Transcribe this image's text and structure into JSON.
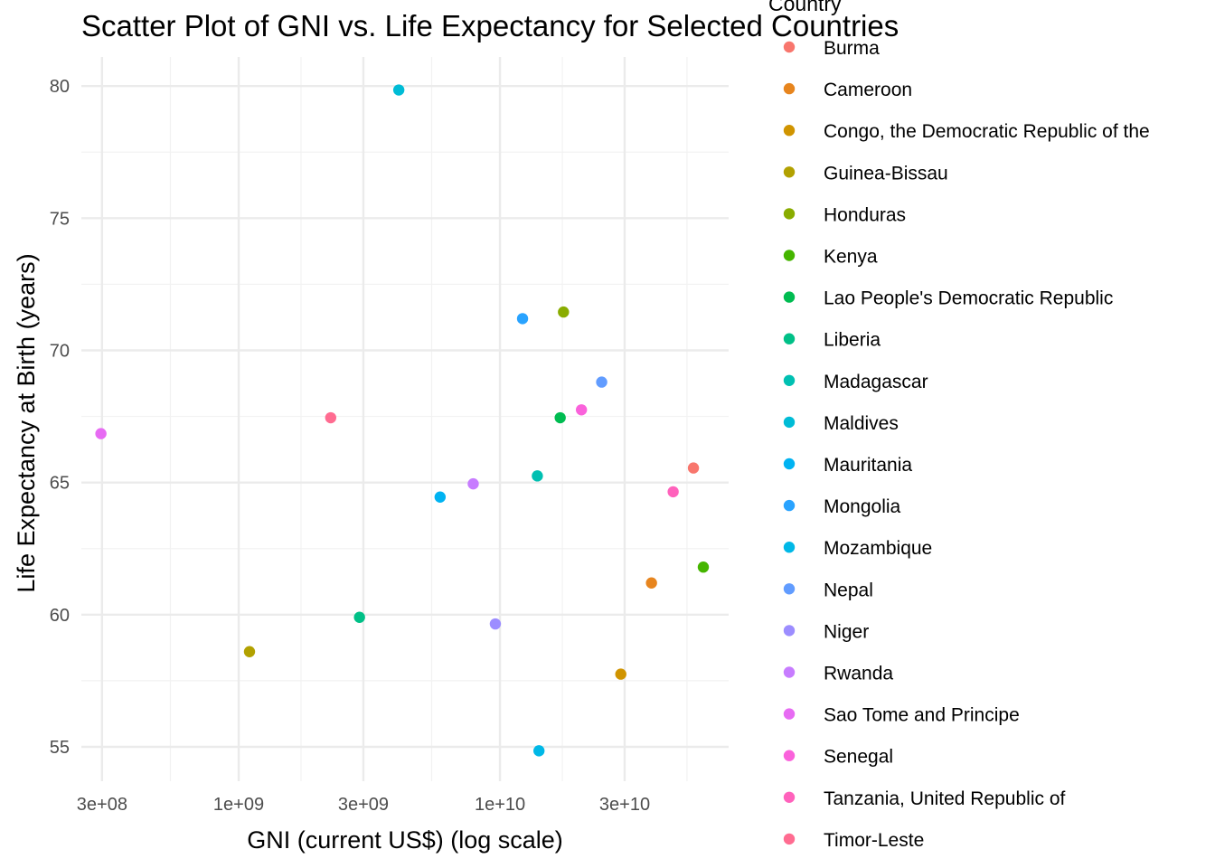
{
  "chart_data": {
    "type": "scatter",
    "title": "Scatter Plot of GNI vs. Life Expectancy for Selected Countries",
    "xlabel": "GNI (current US$) (log scale)",
    "ylabel": "Life Expectancy at Birth (years)",
    "x_scale": "log10",
    "xlim": [
      250000000,
      75000000000
    ],
    "ylim": [
      53.7,
      81.1
    ],
    "x_ticks": [
      {
        "value": 300000000,
        "label": "3e+08"
      },
      {
        "value": 1000000000,
        "label": "1e+09"
      },
      {
        "value": 3000000000,
        "label": "3e+09"
      },
      {
        "value": 10000000000,
        "label": "1e+10"
      },
      {
        "value": 30000000000,
        "label": "3e+10"
      }
    ],
    "y_ticks": [
      {
        "value": 55,
        "label": "55"
      },
      {
        "value": 60,
        "label": "60"
      },
      {
        "value": 65,
        "label": "65"
      },
      {
        "value": 70,
        "label": "70"
      },
      {
        "value": 75,
        "label": "75"
      },
      {
        "value": 80,
        "label": "80"
      }
    ],
    "grid": true,
    "legend_title": "Country",
    "legend_position": "right",
    "series": [
      {
        "name": "Burma",
        "color": "#F8766D",
        "x": 55000000000,
        "y": 65.55
      },
      {
        "name": "Cameroon",
        "color": "#E7851E",
        "x": 38000000000,
        "y": 61.2
      },
      {
        "name": "Congo, the Democratic Republic of the",
        "color": "#D09400",
        "x": 29000000000,
        "y": 57.75
      },
      {
        "name": "Guinea-Bissau",
        "color": "#B2A100",
        "x": 1100000000,
        "y": 58.6
      },
      {
        "name": "Honduras",
        "color": "#89AC00",
        "x": 17500000000,
        "y": 71.45
      },
      {
        "name": "Kenya",
        "color": "#45B500",
        "x": 60000000000,
        "y": 61.8
      },
      {
        "name": "Lao People's Democratic Republic",
        "color": "#00BC51",
        "x": 17000000000,
        "y": 67.45
      },
      {
        "name": "Liberia",
        "color": "#00C087",
        "x": 2900000000,
        "y": 59.9
      },
      {
        "name": "Madagascar",
        "color": "#00C0B2",
        "x": 13900000000,
        "y": 65.25
      },
      {
        "name": "Maldives",
        "color": "#00BCD6",
        "x": 4100000000,
        "y": 79.85
      },
      {
        "name": "Mauritania",
        "color": "#00B3F2",
        "x": 5900000000,
        "y": 64.45
      },
      {
        "name": "Mongolia",
        "color": "#29A3FF",
        "x": 12200000000,
        "y": 71.2
      },
      {
        "name": "Mozambique",
        "color": "#00B8E7",
        "x": 14100000000,
        "y": 54.85
      },
      {
        "name": "Nepal",
        "color": "#619CFF",
        "x": 24500000000,
        "y": 68.8
      },
      {
        "name": "Niger",
        "color": "#9C8DFF",
        "x": 9600000000,
        "y": 59.65
      },
      {
        "name": "Rwanda",
        "color": "#C77CFF",
        "x": 7900000000,
        "y": 64.95
      },
      {
        "name": "Sao Tome and Principe",
        "color": "#E76BF3",
        "x": 297000000,
        "y": 66.85
      },
      {
        "name": "Senegal",
        "color": "#FA62DB",
        "x": 20500000000,
        "y": 67.75
      },
      {
        "name": "Tanzania, United Republic of",
        "color": "#FF62BC",
        "x": 46000000000,
        "y": 64.65
      },
      {
        "name": "Timor-Leste",
        "color": "#FF6C91",
        "x": 2250000000,
        "y": 67.45
      }
    ]
  }
}
